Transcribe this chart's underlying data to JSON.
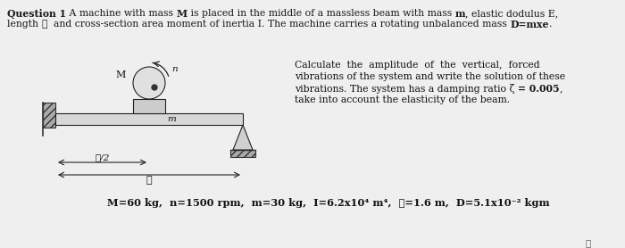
{
  "bg_color": "#efefef",
  "line1_parts": [
    [
      "Question 1",
      true
    ],
    [
      " A machine with mass ",
      false
    ],
    [
      "M",
      true
    ],
    [
      " is placed in the middle of a massless beam with mass ",
      false
    ],
    [
      "m",
      true
    ],
    [
      ", elastic dodulus E,",
      false
    ]
  ],
  "line2_parts": [
    [
      "length ",
      false
    ],
    [
      "ℓ",
      false
    ],
    [
      "  and cross-section area moment of inertia I. The machine carries a rotating unbalanced mass ",
      false
    ],
    [
      "D=mxe",
      true
    ],
    [
      ".",
      false
    ]
  ],
  "right_line1": "Calculate  the  amplitude  of  the  vertical,  forced",
  "right_line2": "vibrations of the system and write the solution of these",
  "right_line3_a": "vibrations. The system has a damping ratio ζ ",
  "right_line3_b": "= 0.005",
  "right_line3_c": ",",
  "right_line4": "take into account the elasticity of the beam.",
  "bottom_bold": "M=60 kg,  n=1500 rpm,  m=30 kg,  I=6.2x10",
  "bottom_exp1": "4",
  "bottom_mid": " m",
  "bottom_exp2": "4",
  "bottom_end": ",  ℓ=1.6 m,  D=5.1x10",
  "bottom_exp3": "-2",
  "bottom_last": " kgm",
  "footnote": "ℓ"
}
